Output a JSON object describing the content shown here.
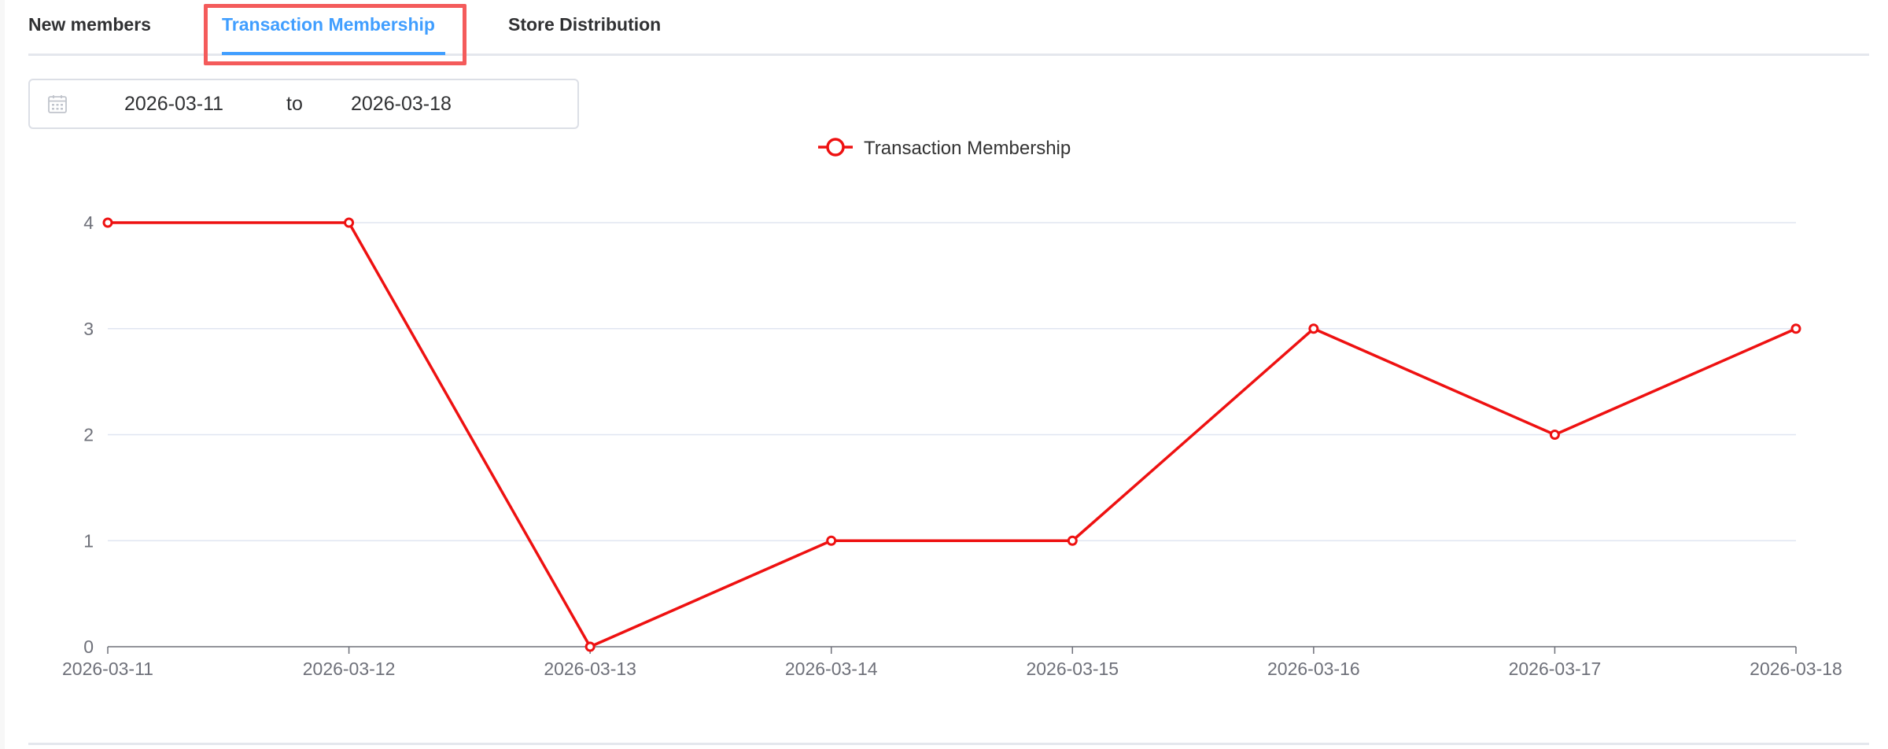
{
  "tabs": [
    {
      "label": "New members",
      "active": false
    },
    {
      "label": "Transaction Membership",
      "active": true
    },
    {
      "label": "Store Distribution",
      "active": false
    }
  ],
  "date_range": {
    "icon": "calendar-icon",
    "start": "2026-03-11",
    "separator": "to",
    "end": "2026-03-18"
  },
  "colors": {
    "accent": "#409eff",
    "series": "#ee1111",
    "highlight": "#f45b5b",
    "grid": "#e0e6f1"
  },
  "chart_data": {
    "type": "line",
    "categories": [
      "2026-03-11",
      "2026-03-12",
      "2026-03-13",
      "2026-03-14",
      "2026-03-15",
      "2026-03-16",
      "2026-03-17",
      "2026-03-18"
    ],
    "series": [
      {
        "name": "Transaction Membership",
        "values": [
          4,
          4,
          0,
          1,
          1,
          3,
          2,
          3
        ]
      }
    ],
    "yticks": [
      "0",
      "1",
      "2",
      "3",
      "4"
    ],
    "ylim": [
      0,
      4
    ],
    "grid": true,
    "legend": "top-center"
  }
}
